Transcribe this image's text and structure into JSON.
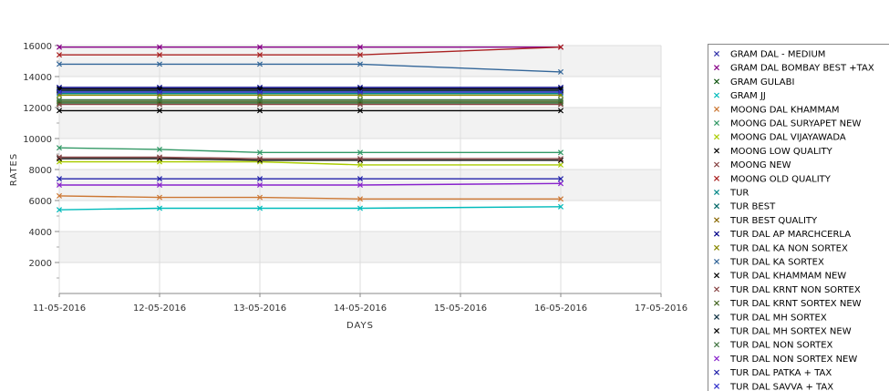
{
  "chart_data": {
    "type": "line",
    "title": "",
    "xlabel": "DAYS",
    "ylabel": "RATES",
    "x_ticks": [
      "11-05-2016",
      "12-05-2016",
      "13-05-2016",
      "14-05-2016",
      "15-05-2016",
      "16-05-2016",
      "17-05-2016"
    ],
    "y_ticks": [
      "2000",
      "4000",
      "6000",
      "8000",
      "10000",
      "12000",
      "14000",
      "16000"
    ],
    "ylim": [
      0,
      16000
    ],
    "grid": true,
    "legend_position": "right",
    "x": [
      "11-05-2016",
      "12-05-2016",
      "13-05-2016",
      "14-05-2016",
      "16-05-2016"
    ],
    "series": [
      {
        "name": "GRAM DAL - MEDIUM",
        "color": "#3333aa",
        "values": [
          13200,
          13200,
          13200,
          13200,
          13200
        ]
      },
      {
        "name": "GRAM DAL BOMBAY BEST +TAX",
        "color": "#880088",
        "values": [
          15900,
          15900,
          15900,
          15900,
          15900
        ]
      },
      {
        "name": "GRAM GULABI",
        "color": "#115511",
        "values": [
          12300,
          12300,
          12300,
          12300,
          12300
        ]
      },
      {
        "name": "GRAM JJ",
        "color": "#00bbbb",
        "values": [
          5400,
          5500,
          5500,
          5500,
          5600
        ]
      },
      {
        "name": "MOONG DAL KHAMMAM",
        "color": "#cc7733",
        "values": [
          6300,
          6200,
          6200,
          6100,
          6100
        ]
      },
      {
        "name": "MOONG DAL SURYAPET NEW",
        "color": "#339966",
        "values": [
          9400,
          9300,
          9100,
          9100,
          9100
        ]
      },
      {
        "name": "MOONG DAL VIJAYAWADA",
        "color": "#aacc00",
        "values": [
          8500,
          8500,
          8500,
          8300,
          8300
        ]
      },
      {
        "name": "MOONG LOW QUALITY",
        "color": "#000000",
        "values": [
          8700,
          8700,
          8600,
          8600,
          8600
        ]
      },
      {
        "name": "MOONG NEW",
        "color": "#884444",
        "values": [
          8800,
          8800,
          8700,
          8700,
          8700
        ]
      },
      {
        "name": "MOONG OLD QUALITY",
        "color": "#aa2222",
        "values": [
          15400,
          15400,
          15400,
          15400,
          15900
        ]
      },
      {
        "name": "TUR",
        "color": "#008888",
        "values": [
          12900,
          12900,
          12900,
          12900,
          12900
        ]
      },
      {
        "name": "TUR BEST",
        "color": "#006666",
        "values": [
          13000,
          13000,
          13000,
          13000,
          13000
        ]
      },
      {
        "name": "TUR BEST QUALITY",
        "color": "#886600",
        "values": [
          13100,
          13100,
          13100,
          13100,
          13100
        ]
      },
      {
        "name": "TUR DAL AP MARCHCERLA",
        "color": "#000088",
        "values": [
          13300,
          13300,
          13300,
          13300,
          13300
        ]
      },
      {
        "name": "TUR DAL KA NON SORTEX",
        "color": "#888800",
        "values": [
          12800,
          12800,
          12800,
          12800,
          12800
        ]
      },
      {
        "name": "TUR DAL KA SORTEX",
        "color": "#336699",
        "values": [
          14800,
          14800,
          14800,
          14800,
          14300
        ]
      },
      {
        "name": "TUR DAL KHAMMAM NEW",
        "color": "#000000",
        "values": [
          11800,
          11800,
          11800,
          11800,
          11800
        ]
      },
      {
        "name": "TUR DAL KRNT NON SORTEX",
        "color": "#884444",
        "values": [
          12200,
          12200,
          12200,
          12200,
          12200
        ]
      },
      {
        "name": "TUR DAL KRNT SORTEX NEW",
        "color": "#446622",
        "values": [
          12400,
          12400,
          12400,
          12400,
          12400
        ]
      },
      {
        "name": "TUR DAL MH SORTEX",
        "color": "#113344",
        "values": [
          13100,
          13100,
          13100,
          13100,
          13100
        ]
      },
      {
        "name": "TUR DAL MH SORTEX NEW",
        "color": "#000000",
        "values": [
          13200,
          13200,
          13200,
          13200,
          13200
        ]
      },
      {
        "name": "TUR DAL NON SORTEX",
        "color": "#447744",
        "values": [
          12500,
          12500,
          12500,
          12500,
          12500
        ]
      },
      {
        "name": "TUR DAL NON SORTEX NEW",
        "color": "#8822cc",
        "values": [
          7000,
          7000,
          7000,
          7000,
          7100
        ]
      },
      {
        "name": "TUR DAL PATKA + TAX",
        "color": "#2222aa",
        "values": [
          7400,
          7400,
          7400,
          7400,
          7400
        ]
      },
      {
        "name": "TUR DAL SAVVA + TAX",
        "color": "#3333cc",
        "values": [
          13000,
          13000,
          13000,
          13000,
          13000
        ]
      }
    ]
  }
}
